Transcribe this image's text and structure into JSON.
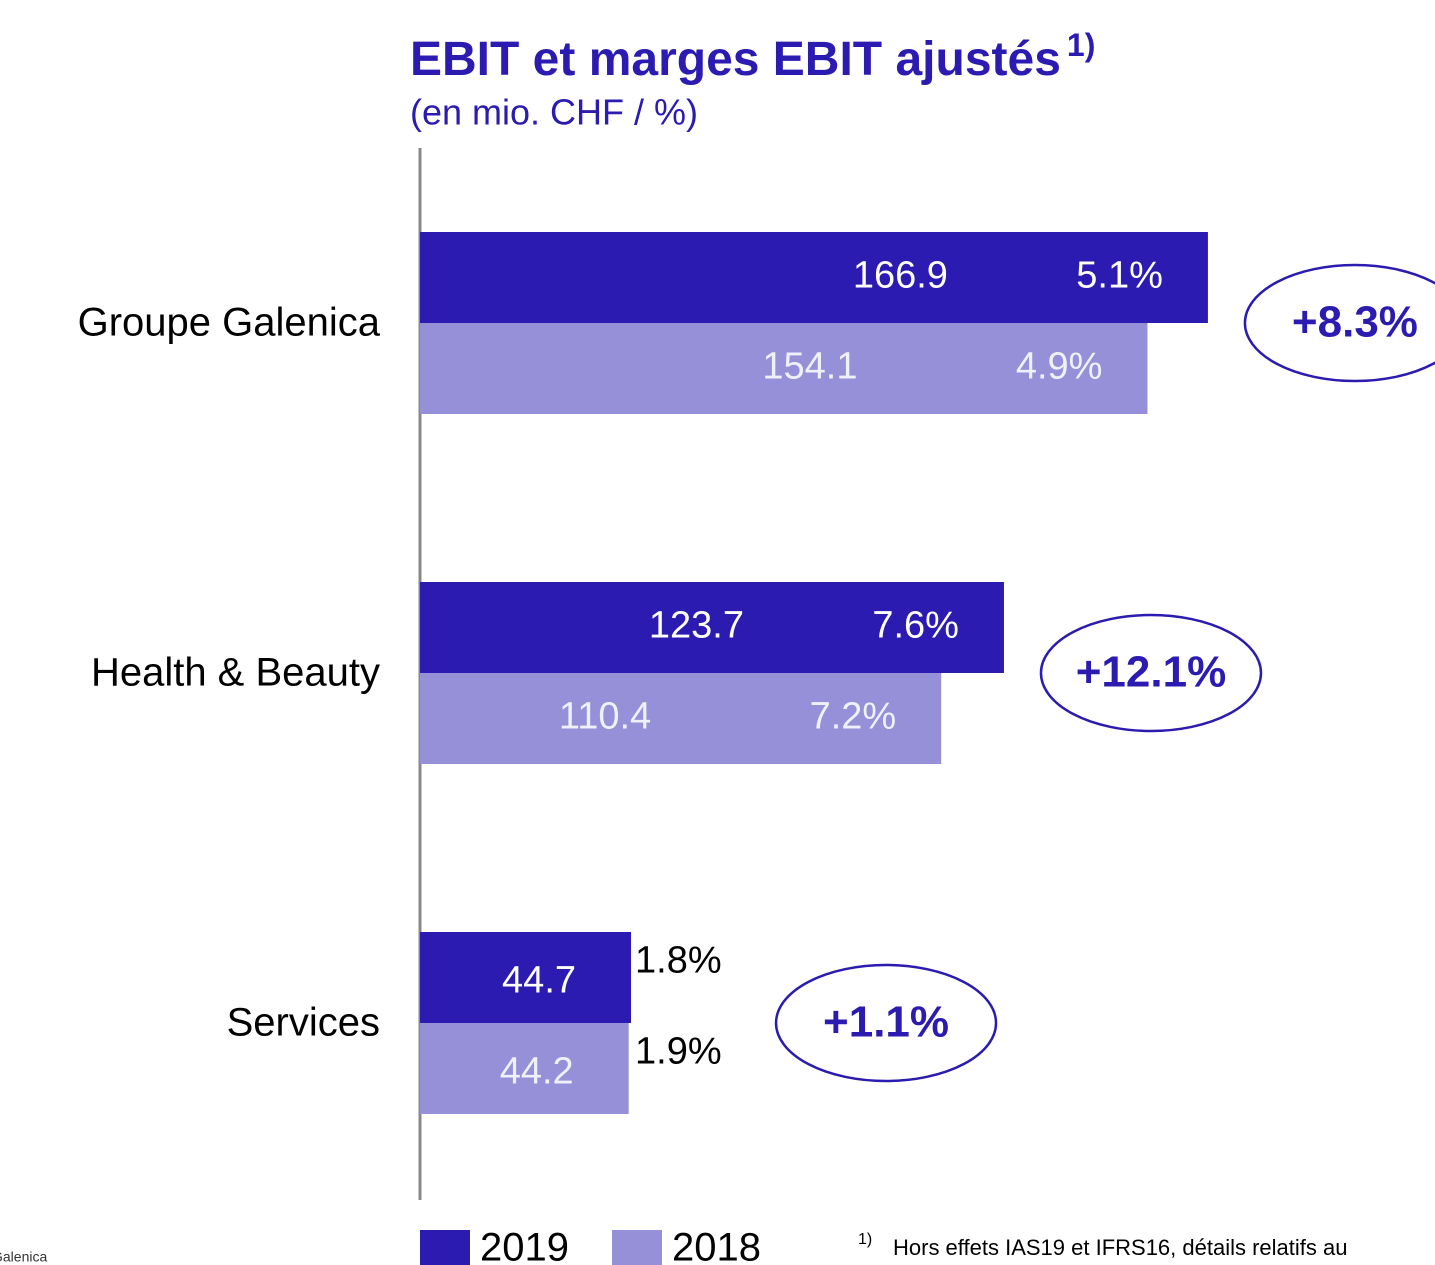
{
  "chart_data": {
    "type": "bar",
    "orientation": "horizontal",
    "title": "EBIT et marges EBIT ajustés",
    "title_note": "1)",
    "subtitle": "(en mio. CHF / %)",
    "categories": [
      "Groupe Galenica",
      "Health & Beauty",
      "Services"
    ],
    "series": [
      {
        "name": "2019",
        "color": "#2b1bb0",
        "values": [
          166.9,
          123.7,
          44.7
        ],
        "margins": [
          5.1,
          7.6,
          1.8
        ],
        "margin_labels": [
          "5.1%",
          "7.6%",
          "1.8%"
        ]
      },
      {
        "name": "2018",
        "color": "#9590d8",
        "values": [
          154.1,
          110.4,
          44.2
        ],
        "margins": [
          4.9,
          7.2,
          1.9
        ],
        "margin_labels": [
          "4.9%",
          "7.2%",
          "1.9%"
        ]
      }
    ],
    "annotations": [
      "+8.3%",
      "+12.1%",
      "+1.1%"
    ],
    "xlim": [
      0,
      215
    ],
    "footnote_marker": "1)",
    "footnote": "Hors effets IAS19 et IFRS16, détails relatifs au",
    "source": "Galenica"
  }
}
